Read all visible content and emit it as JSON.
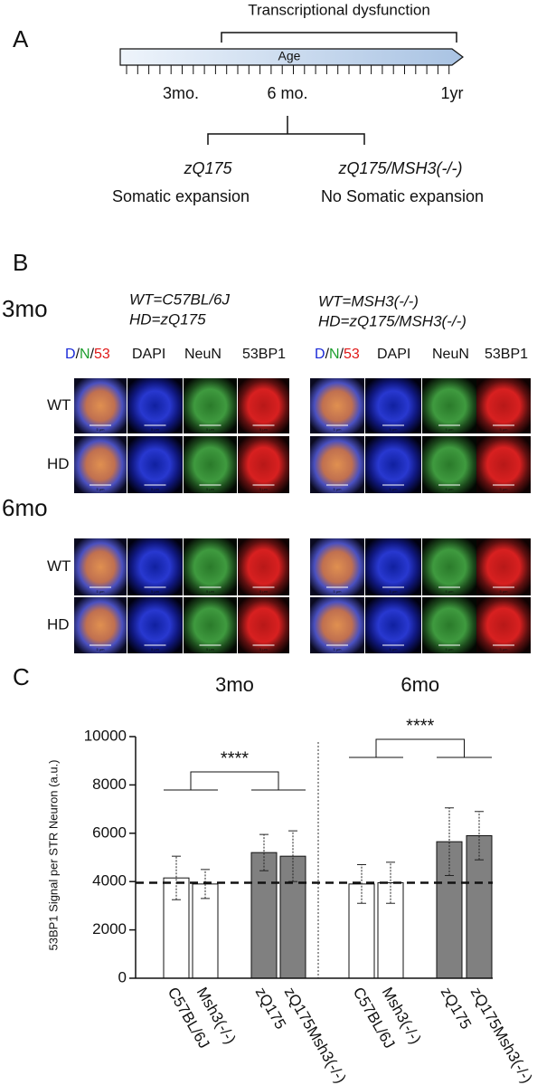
{
  "panel_a": {
    "label": "A",
    "bracket_label": "Transcriptional dysfunction",
    "axis_label": "Age",
    "time_labels": [
      "3mo.",
      "6 mo.",
      "1yr"
    ],
    "branches": [
      {
        "genotype": "zQ175",
        "note": "Somatic expansion"
      },
      {
        "genotype": "zQ175/MSH3(-/-)",
        "note": "No Somatic expansion"
      }
    ]
  },
  "panel_b": {
    "label": "B",
    "timepoints": [
      "3mo",
      "6mo"
    ],
    "left_genotypes": [
      "WT=C57BL/6J",
      "HD=zQ175"
    ],
    "right_genotypes": [
      "WT=MSH3(-/-)",
      "HD=zQ175/MSH3(-/-)"
    ],
    "merge_label": [
      "D",
      "/",
      "N",
      "/",
      "53"
    ],
    "channels": [
      "DAPI",
      "NeuN",
      "53BP1"
    ],
    "row_labels": [
      "WT",
      "HD"
    ],
    "scale_bar": "5 μm"
  },
  "panel_c": {
    "label": "C"
  },
  "chart_data": {
    "type": "bar",
    "y_label": "53BP1 Signal per STR Neuron (a.u.)",
    "group_labels": [
      "3mo",
      "6mo"
    ],
    "categories": [
      "C57BL/6J",
      "Msh3(-/-)",
      "zQ175",
      "zQ175Msh3(-/-)",
      "C57BL/6J",
      "Msh3(-/-)",
      "zQ175",
      "zQ175Msh3(-/-)"
    ],
    "values": [
      4150,
      3900,
      5200,
      5050,
      3900,
      3950,
      5650,
      5900
    ],
    "errors": [
      900,
      600,
      750,
      1050,
      800,
      850,
      1400,
      1000
    ],
    "bar_colors": [
      "#ffffff",
      "#ffffff",
      "#808080",
      "#808080",
      "#ffffff",
      "#ffffff",
      "#808080",
      "#808080"
    ],
    "reference_line": 3950,
    "significance": [
      "****",
      "****"
    ],
    "ylim": [
      0,
      10000
    ],
    "yticks": [
      0,
      2000,
      4000,
      6000,
      8000,
      10000
    ]
  }
}
